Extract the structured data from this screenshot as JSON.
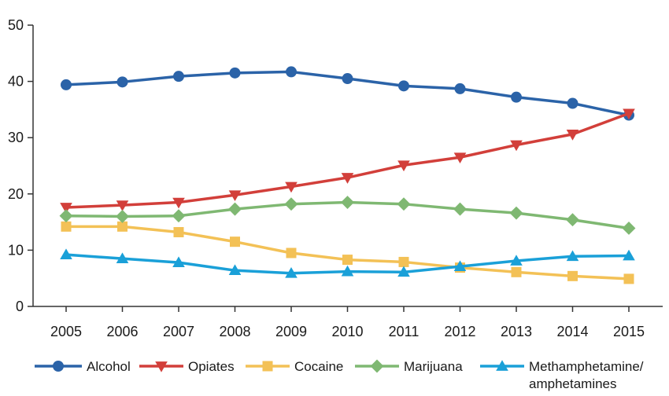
{
  "chart_data": {
    "type": "line",
    "x": [
      2005,
      2006,
      2007,
      2008,
      2009,
      2010,
      2011,
      2012,
      2013,
      2014,
      2015
    ],
    "xticks": [
      "2005",
      "2006",
      "2007",
      "2008",
      "2009",
      "2010",
      "2011",
      "2012",
      "2013",
      "2014",
      "2015"
    ],
    "ylim": [
      0,
      50
    ],
    "yticks": [
      "0",
      "10",
      "20",
      "30",
      "40",
      "50"
    ],
    "grid": false,
    "legend": "bottom",
    "series": [
      {
        "name": "Alcohol",
        "color": "#2b63a8",
        "marker": "circle",
        "values": [
          39.4,
          39.9,
          40.9,
          41.5,
          41.7,
          40.5,
          39.2,
          38.7,
          37.2,
          36.1,
          34.0
        ]
      },
      {
        "name": "Opiates",
        "color": "#d23f3a",
        "marker": "triangle-down",
        "values": [
          17.6,
          18.0,
          18.5,
          19.8,
          21.3,
          22.9,
          25.1,
          26.5,
          28.7,
          30.6,
          34.3
        ]
      },
      {
        "name": "Cocaine",
        "color": "#f3c156",
        "marker": "square",
        "values": [
          14.2,
          14.2,
          13.2,
          11.5,
          9.5,
          8.3,
          7.9,
          6.9,
          6.1,
          5.4,
          4.9
        ]
      },
      {
        "name": "Marijuana",
        "color": "#7fb872",
        "marker": "diamond",
        "values": [
          16.1,
          16.0,
          16.1,
          17.3,
          18.2,
          18.5,
          18.2,
          17.3,
          16.6,
          15.4,
          13.9
        ]
      },
      {
        "name": "Methamphetamine/",
        "name_line2": "amphetamines",
        "color": "#1aa0d8",
        "marker": "triangle-up",
        "values": [
          9.2,
          8.5,
          7.8,
          6.4,
          5.9,
          6.2,
          6.1,
          7.1,
          8.1,
          8.9,
          9.0
        ]
      }
    ]
  }
}
